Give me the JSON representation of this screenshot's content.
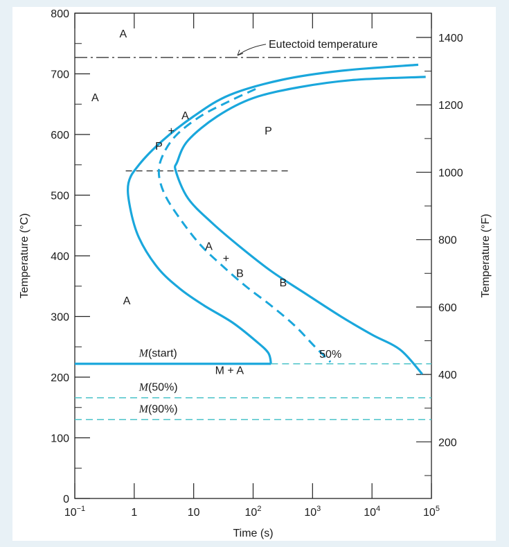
{
  "chart_data": {
    "type": "line",
    "xlabel": "Time (s)",
    "ylabel": "Temperature (°C)",
    "ylabel_right": "Temperature (°F)",
    "x_scale": "log",
    "xlim": [
      0.1,
      100000
    ],
    "ylim": [
      0,
      800
    ],
    "ylim_right_f": [
      32,
      1472
    ],
    "x_ticks": [
      {
        "value": 0.1,
        "base": "10",
        "exp": "−1"
      },
      {
        "value": 1,
        "base": "1",
        "exp": ""
      },
      {
        "value": 10,
        "base": "10",
        "exp": ""
      },
      {
        "value": 100,
        "base": "10",
        "exp": "2"
      },
      {
        "value": 1000,
        "base": "10",
        "exp": "3"
      },
      {
        "value": 10000,
        "base": "10",
        "exp": "4"
      },
      {
        "value": 100000,
        "base": "10",
        "exp": "5"
      }
    ],
    "y_ticks_left": [
      0,
      100,
      200,
      300,
      400,
      500,
      600,
      700,
      800
    ],
    "y_ticks_right_f": [
      200,
      400,
      600,
      800,
      1000,
      1200,
      1400
    ],
    "colors": {
      "curve": "#1aa7dc",
      "martensite": "#4bc3c9",
      "reference": "#222222"
    },
    "eutectoid": {
      "temp": 727,
      "label": "Eutectoid temperature"
    },
    "nose_line": {
      "temp": 540,
      "x_from": 0.72,
      "x_to": 400
    },
    "series": [
      {
        "role": "start",
        "style": "solid",
        "points": [
          [
            60000,
            715
          ],
          [
            3000,
            705
          ],
          [
            300,
            690
          ],
          [
            40,
            665
          ],
          [
            10,
            630
          ],
          [
            3,
            590
          ],
          [
            1.2,
            550
          ],
          [
            0.8,
            520
          ],
          [
            0.85,
            480
          ],
          [
            1.2,
            430
          ],
          [
            2.5,
            380
          ],
          [
            6,
            345
          ],
          [
            15,
            318
          ],
          [
            45,
            290
          ],
          [
            110,
            260
          ],
          [
            180,
            240
          ],
          [
            200,
            222
          ]
        ]
      },
      {
        "role": "50%",
        "label": "50%",
        "style": "dashed",
        "points": [
          [
            110,
            675
          ],
          [
            40,
            655
          ],
          [
            13,
            630
          ],
          [
            5,
            598
          ],
          [
            3,
            565
          ],
          [
            2.6,
            535
          ],
          [
            3.3,
            500
          ],
          [
            6,
            460
          ],
          [
            13,
            418
          ],
          [
            30,
            384
          ],
          [
            75,
            350
          ],
          [
            200,
            318
          ],
          [
            500,
            285
          ],
          [
            1100,
            250
          ],
          [
            2000,
            225
          ]
        ]
      },
      {
        "role": "finish",
        "style": "solid",
        "points": [
          [
            80000,
            695
          ],
          [
            5000,
            690
          ],
          [
            600,
            678
          ],
          [
            100,
            660
          ],
          [
            25,
            630
          ],
          [
            8,
            590
          ],
          [
            5.3,
            555
          ],
          [
            5,
            540
          ],
          [
            8,
            495
          ],
          [
            20,
            455
          ],
          [
            60,
            415
          ],
          [
            200,
            375
          ],
          [
            700,
            340
          ],
          [
            3000,
            300
          ],
          [
            10000,
            270
          ],
          [
            30000,
            245
          ],
          [
            70000,
            205
          ]
        ]
      },
      {
        "role": "M(start)",
        "style": "solid",
        "points": [
          [
            0.1,
            222
          ],
          [
            200,
            222
          ]
        ]
      },
      {
        "role": "M(start)",
        "style": "dashed",
        "points": [
          [
            200,
            222
          ],
          [
            100000,
            222
          ]
        ]
      },
      {
        "role": "M(50%)",
        "style": "dashed",
        "points": [
          [
            0.1,
            166
          ],
          [
            100000,
            166
          ]
        ]
      },
      {
        "role": "M(90%)",
        "style": "dashed",
        "points": [
          [
            0.1,
            130
          ],
          [
            100000,
            130
          ]
        ]
      }
    ],
    "annotations": [
      {
        "text": "A",
        "x": 0.65,
        "y": 760
      },
      {
        "text": "A",
        "x": 0.22,
        "y": 655
      },
      {
        "text": "A",
        "x": 7.2,
        "y": 625
      },
      {
        "text": "+",
        "x": 4.2,
        "y": 600
      },
      {
        "text": "P",
        "x": 2.6,
        "y": 575
      },
      {
        "text": "P",
        "x": 180,
        "y": 600
      },
      {
        "text": "B",
        "x": 320,
        "y": 350
      },
      {
        "text": "A",
        "x": 18,
        "y": 410
      },
      {
        "text": "+",
        "x": 35,
        "y": 390
      },
      {
        "text": "B",
        "x": 60,
        "y": 365
      },
      {
        "text": "A",
        "x": 0.75,
        "y": 320
      },
      {
        "text": "M + A",
        "x": 40,
        "y": 205
      },
      {
        "text": "50%",
        "x": 2000,
        "y": 232
      }
    ],
    "m_labels": [
      {
        "prefix": "M",
        "suffix": "(start)",
        "x": 1.2,
        "y": 234
      },
      {
        "prefix": "M",
        "suffix": "(50%)",
        "x": 1.2,
        "y": 178
      },
      {
        "prefix": "M",
        "suffix": "(90%)",
        "x": 1.2,
        "y": 142
      }
    ]
  }
}
